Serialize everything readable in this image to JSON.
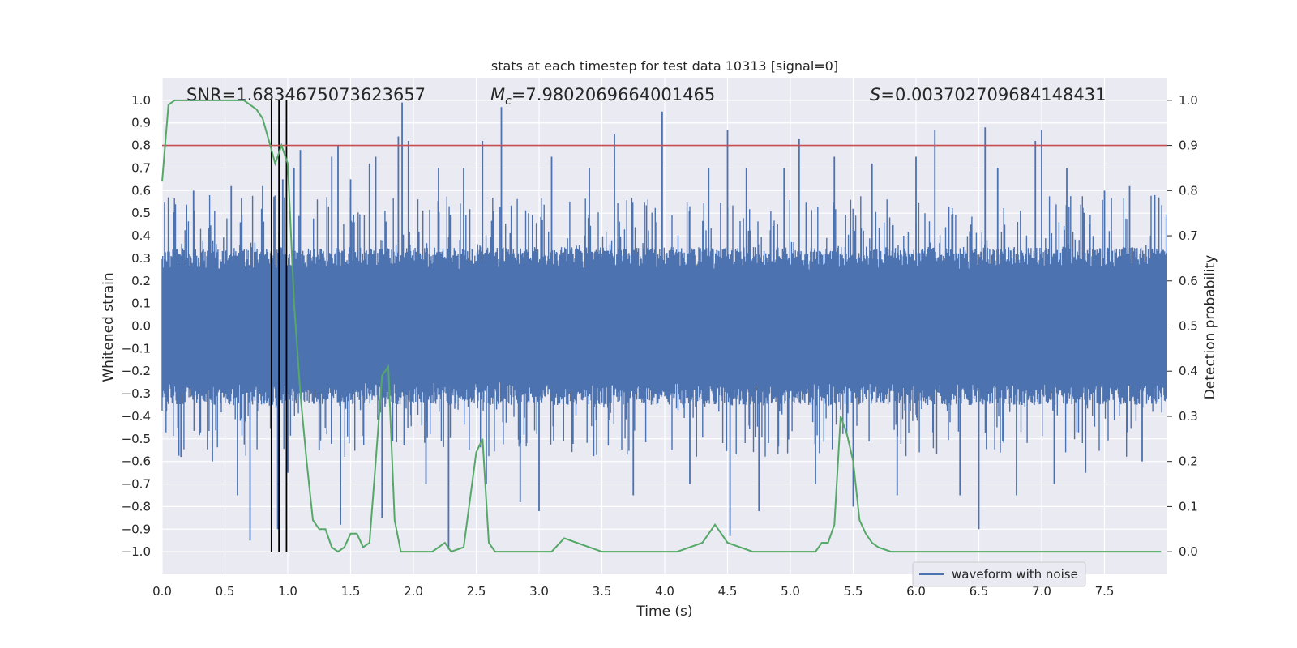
{
  "chart_data": {
    "type": "line",
    "title": "stats at each timestep for test data 10313 [signal=0]",
    "xlabel": "Time (s)",
    "ylabel_left": "Whitened strain",
    "ylabel_right": "Detection probability",
    "xlim": [
      0,
      8
    ],
    "ylim_left": [
      -1.1,
      1.1
    ],
    "ylim_right": [
      -0.05,
      1.05
    ],
    "x_ticks": [
      0.0,
      0.5,
      1.0,
      1.5,
      2.0,
      2.5,
      3.0,
      3.5,
      4.0,
      4.5,
      5.0,
      5.5,
      6.0,
      6.5,
      7.0,
      7.5
    ],
    "x_tick_labels": [
      "0.0",
      "0.5",
      "1.0",
      "1.5",
      "2.0",
      "2.5",
      "3.0",
      "3.5",
      "4.0",
      "4.5",
      "5.0",
      "5.5",
      "6.0",
      "6.5",
      "7.0",
      "7.5"
    ],
    "y_left_ticks": [
      1.0,
      0.9,
      0.8,
      0.7,
      0.6,
      0.5,
      0.4,
      0.3,
      0.2,
      0.1,
      0.0,
      -0.1,
      -0.2,
      -0.3,
      -0.4,
      -0.5,
      -0.6,
      -0.7,
      -0.8,
      -0.9,
      -1.0
    ],
    "y_left_tick_labels": [
      "1.0",
      "0.9",
      "0.8",
      "0.7",
      "0.6",
      "0.5",
      "0.4",
      "0.3",
      "0.2",
      "0.1",
      "0.0",
      "−0.1",
      "−0.2",
      "−0.3",
      "−0.4",
      "−0.5",
      "−0.6",
      "−0.7",
      "−0.8",
      "−0.9",
      "−1.0"
    ],
    "y_right_ticks": [
      1.0,
      0.9,
      0.8,
      0.7,
      0.6,
      0.5,
      0.4,
      0.3,
      0.2,
      0.1,
      0.0
    ],
    "y_right_tick_labels": [
      "1.0",
      "0.9",
      "0.8",
      "0.7",
      "0.6",
      "0.5",
      "0.4",
      "0.3",
      "0.2",
      "0.1",
      "0.0"
    ],
    "legend": {
      "label": "waveform with noise",
      "placement": "lower-right"
    },
    "annotations": {
      "snr": "SNR=1.6834675073623657",
      "mc_symbol": "M",
      "mc_subscript": "c",
      "mc_value": "=7.9802069664001465",
      "s_symbol": "S",
      "s_value": "=0.003702709684148431"
    },
    "threshold_line": {
      "probability": 0.9,
      "color": "#c44e52"
    },
    "vertical_markers": [
      0.87,
      0.93,
      0.99
    ],
    "waveform": {
      "name": "waveform with noise",
      "color": "#4c72b0",
      "amplitude": 0.25,
      "spikes": [
        {
          "t": 0.02,
          "v": 0.55
        },
        {
          "t": 0.05,
          "v": 0.57
        },
        {
          "t": 0.15,
          "v": -0.58
        },
        {
          "t": 0.25,
          "v": 0.6
        },
        {
          "t": 0.4,
          "v": -0.6
        },
        {
          "t": 0.55,
          "v": 0.62
        },
        {
          "t": 0.6,
          "v": -0.75
        },
        {
          "t": 0.7,
          "v": -0.95
        },
        {
          "t": 0.8,
          "v": 0.62
        },
        {
          "t": 0.92,
          "v": -0.9
        },
        {
          "t": 0.96,
          "v": 0.65
        },
        {
          "t": 1.0,
          "v": -0.65
        },
        {
          "t": 1.05,
          "v": 0.7
        },
        {
          "t": 1.1,
          "v": 0.78
        },
        {
          "t": 1.25,
          "v": -0.55
        },
        {
          "t": 1.35,
          "v": 0.75
        },
        {
          "t": 1.4,
          "v": 0.8
        },
        {
          "t": 1.42,
          "v": -0.88
        },
        {
          "t": 1.5,
          "v": 0.65
        },
        {
          "t": 1.65,
          "v": 0.72
        },
        {
          "t": 1.7,
          "v": 0.75
        },
        {
          "t": 1.75,
          "v": -0.85
        },
        {
          "t": 1.88,
          "v": 0.84
        },
        {
          "t": 1.91,
          "v": 0.99
        },
        {
          "t": 1.96,
          "v": 0.82
        },
        {
          "t": 2.1,
          "v": -0.7
        },
        {
          "t": 2.2,
          "v": 0.7
        },
        {
          "t": 2.28,
          "v": -0.99
        },
        {
          "t": 2.4,
          "v": 0.7
        },
        {
          "t": 2.55,
          "v": 0.82
        },
        {
          "t": 2.58,
          "v": -0.7
        },
        {
          "t": 2.7,
          "v": 0.97
        },
        {
          "t": 2.85,
          "v": -0.78
        },
        {
          "t": 3.0,
          "v": -0.82
        },
        {
          "t": 3.1,
          "v": 0.75
        },
        {
          "t": 3.4,
          "v": 0.7
        },
        {
          "t": 3.6,
          "v": 0.85
        },
        {
          "t": 3.75,
          "v": -0.75
        },
        {
          "t": 3.98,
          "v": 0.95
        },
        {
          "t": 4.2,
          "v": -0.7
        },
        {
          "t": 4.35,
          "v": 0.7
        },
        {
          "t": 4.5,
          "v": 0.87
        },
        {
          "t": 4.52,
          "v": -0.93
        },
        {
          "t": 4.65,
          "v": 0.7
        },
        {
          "t": 4.75,
          "v": -0.82
        },
        {
          "t": 4.95,
          "v": 0.7
        },
        {
          "t": 5.07,
          "v": 0.83
        },
        {
          "t": 5.2,
          "v": -0.7
        },
        {
          "t": 5.35,
          "v": 0.75
        },
        {
          "t": 5.5,
          "v": -0.8
        },
        {
          "t": 5.65,
          "v": 0.72
        },
        {
          "t": 5.85,
          "v": -0.75
        },
        {
          "t": 6.0,
          "v": 0.75
        },
        {
          "t": 6.15,
          "v": 0.87
        },
        {
          "t": 6.35,
          "v": -0.75
        },
        {
          "t": 6.5,
          "v": -0.9
        },
        {
          "t": 6.55,
          "v": 0.88
        },
        {
          "t": 6.65,
          "v": 0.7
        },
        {
          "t": 6.8,
          "v": -0.75
        },
        {
          "t": 6.95,
          "v": 0.82
        },
        {
          "t": 7.0,
          "v": 0.87
        },
        {
          "t": 7.1,
          "v": -0.7
        },
        {
          "t": 7.2,
          "v": 0.7
        },
        {
          "t": 7.35,
          "v": -0.65
        },
        {
          "t": 7.5,
          "v": 0.6
        },
        {
          "t": 7.7,
          "v": 0.62
        },
        {
          "t": 7.8,
          "v": -0.6
        },
        {
          "t": 7.9,
          "v": 0.58
        }
      ]
    },
    "probability": {
      "name": "detection probability",
      "color": "#55a868",
      "x": [
        0.0,
        0.05,
        0.1,
        0.2,
        0.3,
        0.4,
        0.5,
        0.6,
        0.65,
        0.7,
        0.75,
        0.8,
        0.85,
        0.9,
        0.95,
        1.0,
        1.05,
        1.1,
        1.15,
        1.2,
        1.25,
        1.3,
        1.35,
        1.4,
        1.45,
        1.5,
        1.55,
        1.6,
        1.65,
        1.7,
        1.75,
        1.8,
        1.85,
        1.9,
        1.95,
        2.0,
        2.05,
        2.15,
        2.25,
        2.3,
        2.4,
        2.5,
        2.55,
        2.6,
        2.65,
        2.7,
        2.75,
        2.8,
        2.85,
        2.9,
        3.0,
        3.1,
        3.2,
        3.3,
        3.4,
        3.5,
        3.6,
        3.7,
        3.8,
        3.9,
        4.0,
        4.1,
        4.2,
        4.3,
        4.4,
        4.45,
        4.5,
        4.6,
        4.7,
        4.8,
        4.9,
        5.0,
        5.1,
        5.2,
        5.25,
        5.3,
        5.35,
        5.4,
        5.45,
        5.5,
        5.55,
        5.6,
        5.65,
        5.7,
        5.8,
        5.9,
        6.0,
        6.2,
        6.4,
        6.6,
        6.8,
        7.0,
        7.2,
        7.4,
        7.6,
        7.8,
        7.95
      ],
      "values": [
        0.82,
        0.99,
        1.0,
        1.0,
        1.0,
        1.0,
        1.0,
        1.0,
        1.0,
        0.99,
        0.98,
        0.96,
        0.91,
        0.86,
        0.9,
        0.86,
        0.55,
        0.35,
        0.2,
        0.07,
        0.05,
        0.05,
        0.01,
        0.0,
        0.01,
        0.04,
        0.04,
        0.01,
        0.02,
        0.2,
        0.39,
        0.41,
        0.07,
        0.0,
        0.0,
        0.0,
        0.0,
        0.0,
        0.02,
        0.0,
        0.01,
        0.22,
        0.25,
        0.02,
        0.0,
        0.0,
        0.0,
        0.0,
        0.0,
        0.0,
        0.0,
        0.0,
        0.03,
        0.02,
        0.01,
        0.0,
        0.0,
        0.0,
        0.0,
        0.0,
        0.0,
        0.0,
        0.01,
        0.02,
        0.06,
        0.04,
        0.02,
        0.01,
        0.0,
        0.0,
        0.0,
        0.0,
        0.0,
        0.0,
        0.02,
        0.02,
        0.06,
        0.3,
        0.26,
        0.2,
        0.07,
        0.04,
        0.02,
        0.01,
        0.0,
        0.0,
        0.0,
        0.0,
        0.0,
        0.0,
        0.0,
        0.0,
        0.0,
        0.0,
        0.0,
        0.0,
        0.0
      ]
    }
  }
}
